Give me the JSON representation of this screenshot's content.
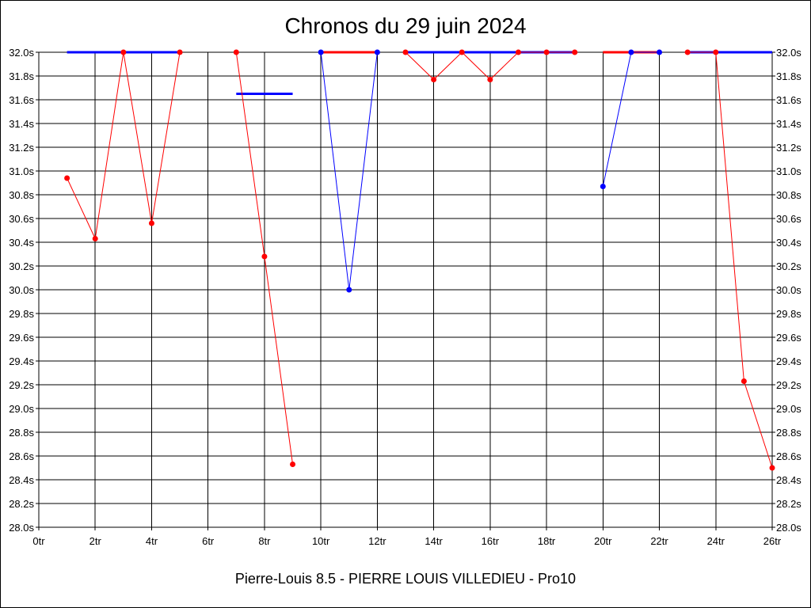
{
  "chart_data": {
    "type": "line",
    "title": "Chronos du 29 juin 2024",
    "subtitle": "Pierre-Louis 8.5 - PIERRE LOUIS VILLEDIEU - Pro10",
    "xlabel": "",
    "ylabel": "",
    "xlim": [
      0,
      26
    ],
    "ylim": [
      28.0,
      32.0
    ],
    "x_ticks": [
      0,
      2,
      4,
      6,
      8,
      10,
      12,
      14,
      16,
      18,
      20,
      22,
      24,
      26
    ],
    "x_tick_labels": [
      "0tr",
      "2tr",
      "4tr",
      "6tr",
      "8tr",
      "10tr",
      "12tr",
      "14tr",
      "16tr",
      "18tr",
      "20tr",
      "22tr",
      "24tr",
      "26tr"
    ],
    "y_ticks": [
      28.0,
      28.2,
      28.4,
      28.6,
      28.8,
      29.0,
      29.2,
      29.4,
      29.6,
      29.8,
      30.0,
      30.2,
      30.4,
      30.6,
      30.8,
      31.0,
      31.2,
      31.4,
      31.6,
      31.8,
      32.0
    ],
    "y_tick_labels": [
      "28.0s",
      "28.2s",
      "28.4s",
      "28.6s",
      "28.8s",
      "29.0s",
      "29.2s",
      "29.4s",
      "29.6s",
      "29.8s",
      "30.0s",
      "30.2s",
      "30.4s",
      "30.6s",
      "30.8s",
      "31.0s",
      "31.2s",
      "31.4s",
      "31.6s",
      "31.8s",
      "32.0s"
    ],
    "grid": true,
    "colors": {
      "red": "#ff0000",
      "blue": "#0000ff"
    },
    "series": [
      {
        "color": "#0000ff",
        "kind": "segment",
        "x": [
          1,
          5
        ],
        "y": [
          32.0,
          32.0
        ]
      },
      {
        "color": "#0000ff",
        "kind": "segment",
        "x": [
          7,
          9
        ],
        "y": [
          31.65,
          31.65
        ]
      },
      {
        "color": "#ff0000",
        "kind": "segment",
        "x": [
          10,
          12
        ],
        "y": [
          32.0,
          32.0
        ]
      },
      {
        "color": "#0000ff",
        "kind": "segment",
        "x": [
          13,
          19
        ],
        "y": [
          32.0,
          32.0
        ]
      },
      {
        "color": "#ff0000",
        "kind": "segment",
        "x": [
          20,
          22
        ],
        "y": [
          32.0,
          32.0
        ]
      },
      {
        "color": "#0000ff",
        "kind": "segment",
        "x": [
          23,
          26
        ],
        "y": [
          32.0,
          32.0
        ]
      },
      {
        "color": "#ff0000",
        "kind": "line",
        "x": [
          1,
          2,
          3,
          4,
          5
        ],
        "y": [
          30.94,
          30.43,
          32.0,
          30.56,
          32.0
        ]
      },
      {
        "color": "#ff0000",
        "kind": "line",
        "x": [
          7,
          8,
          9
        ],
        "y": [
          32.0,
          30.28,
          28.53
        ]
      },
      {
        "color": "#0000ff",
        "kind": "line",
        "x": [
          10,
          11,
          12
        ],
        "y": [
          32.0,
          30.0,
          32.0
        ]
      },
      {
        "color": "#ff0000",
        "kind": "line",
        "x": [
          13,
          14,
          15,
          16,
          17,
          18,
          19
        ],
        "y": [
          32.0,
          31.77,
          32.0,
          31.77,
          32.0,
          32.0,
          32.0
        ]
      },
      {
        "color": "#0000ff",
        "kind": "line",
        "x": [
          20,
          21,
          22
        ],
        "y": [
          30.87,
          32.0,
          32.0
        ]
      },
      {
        "color": "#ff0000",
        "kind": "line",
        "x": [
          23,
          24,
          25,
          26
        ],
        "y": [
          32.0,
          32.0,
          29.23,
          28.5
        ]
      }
    ]
  }
}
